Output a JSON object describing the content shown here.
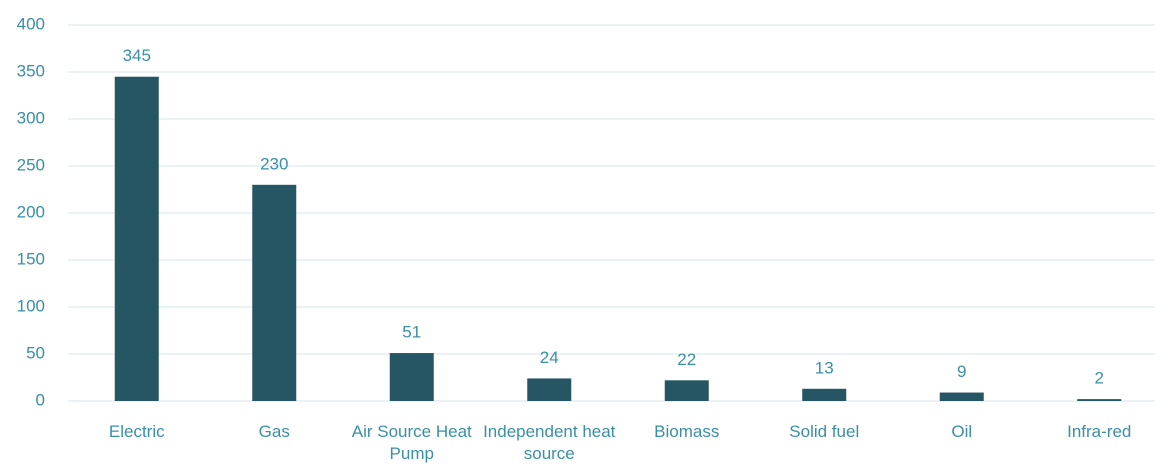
{
  "chart_data": {
    "type": "bar",
    "categories": [
      "Electric",
      "Gas",
      "Air Source Heat Pump",
      "Independent heat source",
      "Biomass",
      "Solid fuel",
      "Oil",
      "Infra-red"
    ],
    "values": [
      345,
      230,
      51,
      24,
      22,
      13,
      9,
      2
    ],
    "color": "#265563",
    "ylim": [
      0,
      400
    ],
    "yticks": [
      0,
      50,
      100,
      150,
      200,
      250,
      300,
      350,
      400
    ],
    "grid": true
  }
}
